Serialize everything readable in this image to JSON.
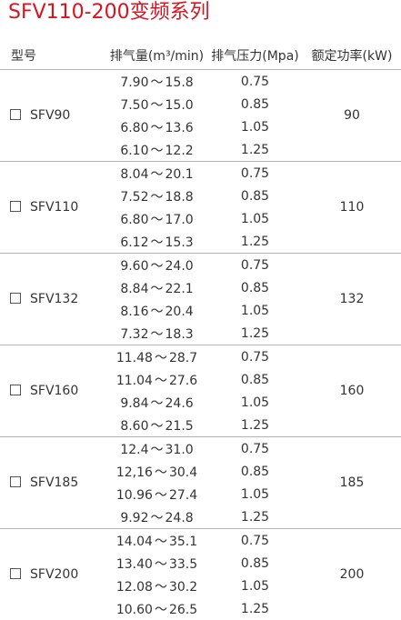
{
  "title": "SFV110-200变频系列",
  "headers": {
    "model": "型号",
    "flow": "排气量(m³/min)",
    "pressure": "排气压力(Mpa)",
    "power": "额定功率(kW)"
  },
  "groups": [
    {
      "model": "SFV90",
      "power": "90",
      "rows": [
        {
          "flow_min": "7.90",
          "flow_max": "15.8",
          "pressure": "0.75"
        },
        {
          "flow_min": "7.50",
          "flow_max": "15.0",
          "pressure": "0.85"
        },
        {
          "flow_min": "6.80",
          "flow_max": "13.6",
          "pressure": "1.05"
        },
        {
          "flow_min": "6.10",
          "flow_max": "12.2",
          "pressure": "1.25"
        }
      ]
    },
    {
      "model": "SFV110",
      "power": "110",
      "rows": [
        {
          "flow_min": "8.04",
          "flow_max": "20.1",
          "pressure": "0.75"
        },
        {
          "flow_min": "7.52",
          "flow_max": "18.8",
          "pressure": "0.85"
        },
        {
          "flow_min": "6.80",
          "flow_max": "17.0",
          "pressure": "1.05"
        },
        {
          "flow_min": "6.12",
          "flow_max": "15.3",
          "pressure": "1.25"
        }
      ]
    },
    {
      "model": "SFV132",
      "power": "132",
      "rows": [
        {
          "flow_min": "9.60",
          "flow_max": "24.0",
          "pressure": "0.75"
        },
        {
          "flow_min": "8.84",
          "flow_max": "22.1",
          "pressure": "0.85"
        },
        {
          "flow_min": "8.16",
          "flow_max": "20.4",
          "pressure": "1.05"
        },
        {
          "flow_min": "7.32",
          "flow_max": "18.3",
          "pressure": "1.25"
        }
      ]
    },
    {
      "model": "SFV160",
      "power": "160",
      "rows": [
        {
          "flow_min": "11.48",
          "flow_max": "28.7",
          "pressure": "0.75"
        },
        {
          "flow_min": "11.04",
          "flow_max": "27.6",
          "pressure": "0.85"
        },
        {
          "flow_min": "9.84",
          "flow_max": "24.6",
          "pressure": "1.05"
        },
        {
          "flow_min": "8.60",
          "flow_max": "21.5",
          "pressure": "1.25"
        }
      ]
    },
    {
      "model": "SFV185",
      "power": "185",
      "rows": [
        {
          "flow_min": "12.4",
          "flow_max": "31.0",
          "pressure": "0.75"
        },
        {
          "flow_min": "12,16",
          "flow_max": "30.4",
          "pressure": "0.85"
        },
        {
          "flow_min": "10.96",
          "flow_max": "27.4",
          "pressure": "1.05"
        },
        {
          "flow_min": "9.92",
          "flow_max": "24.8",
          "pressure": "1.25"
        }
      ]
    },
    {
      "model": "SFV200",
      "power": "200",
      "rows": [
        {
          "flow_min": "14.04",
          "flow_max": "35.1",
          "pressure": "0.75"
        },
        {
          "flow_min": "13.40",
          "flow_max": "33.5",
          "pressure": "0.85"
        },
        {
          "flow_min": "12.08",
          "flow_max": "30.2",
          "pressure": "1.05"
        },
        {
          "flow_min": "10.60",
          "flow_max": "26.5",
          "pressure": "1.25"
        }
      ]
    }
  ],
  "range_separator": "～"
}
